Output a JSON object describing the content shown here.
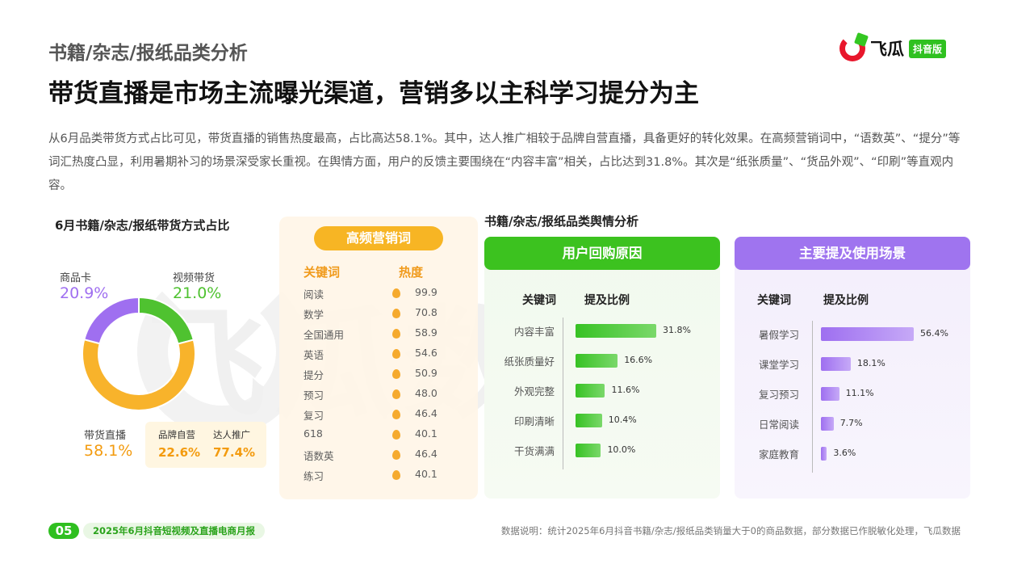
{
  "header": {
    "section_title": "书籍/杂志/报纸品类分析",
    "headline": "带货直播是市场主流曝光渠道，营销多以主科学习提分为主",
    "summary": "从6月品类带货方式占比可见，带货直播的销售热度最高，占比高达58.1%。其中，达人推广相较于品牌自营直播，具备更好的转化效果。在高频营销词中，“语数英”、“提分”等词汇热度凸显，利用暑期补习的场景深受家长重视。在舆情方面，用户的反馈主要围绕在“内容丰富”相关，占比达到31.8%。其次是“纸张质量”、“货品外观”、“印刷”等直观内容。"
  },
  "logo": {
    "text": "飞瓜",
    "badge": "抖音版"
  },
  "watermark": "飞瓜数据",
  "colors": {
    "green": "#3cc21f",
    "purple": "#9f74ef",
    "orange": "#f7b219",
    "red": "#e8172c"
  },
  "chart_data": [
    {
      "type": "pie",
      "title": "6月书籍/杂志/报纸带货方式占比",
      "slices": [
        {
          "name": "视频带货",
          "value": 21.0,
          "value_label": "21.0%",
          "color": "#4fc230"
        },
        {
          "name": "带货直播",
          "value": 58.1,
          "value_label": "58.1%",
          "color": "#f8b32b"
        },
        {
          "name": "商品卡",
          "value": 20.9,
          "value_label": "20.9%",
          "color": "#9f6ff0"
        }
      ],
      "sub_split": [
        {
          "name": "品牌自营",
          "value_label": "22.6%"
        },
        {
          "name": "达人推广",
          "value_label": "77.4%"
        }
      ]
    },
    {
      "type": "table",
      "title": "高频营销词",
      "columns": [
        "关键词",
        "热度"
      ],
      "rows": [
        {
          "word": "阅读",
          "heat": "99.9"
        },
        {
          "word": "数学",
          "heat": "70.8"
        },
        {
          "word": "全国通用",
          "heat": "58.9"
        },
        {
          "word": "英语",
          "heat": "54.6"
        },
        {
          "word": "提分",
          "heat": "50.9"
        },
        {
          "word": "预习",
          "heat": "48.0"
        },
        {
          "word": "复习",
          "heat": "46.4"
        },
        {
          "word": "618",
          "heat": "40.1"
        },
        {
          "word": "语数英",
          "heat": "46.4"
        },
        {
          "word": "练习",
          "heat": "40.1"
        }
      ]
    },
    {
      "type": "bar",
      "title": "用户回购原因",
      "columns": [
        "关键词",
        "提及比例"
      ],
      "categories": [
        "内容丰富",
        "纸张质量好",
        "外观完整",
        "印刷清晰",
        "干货满满"
      ],
      "values": [
        31.8,
        16.6,
        11.6,
        10.4,
        10.0
      ],
      "value_labels": [
        "31.8%",
        "16.6%",
        "11.6%",
        "10.4%",
        "10.0%"
      ]
    },
    {
      "type": "bar",
      "title": "主要提及使用场景",
      "columns": [
        "关键词",
        "提及比例"
      ],
      "categories": [
        "暑假学习",
        "课堂学习",
        "复习预习",
        "日常阅读",
        "家庭教育"
      ],
      "values": [
        56.4,
        18.1,
        11.1,
        7.7,
        3.6
      ],
      "value_labels": [
        "56.4%",
        "18.1%",
        "11.1%",
        "7.7%",
        "3.6%"
      ]
    }
  ],
  "sentiment_title": "书籍/杂志/报纸品类舆情分析",
  "footer": {
    "page_number": "05",
    "report_name": "2025年6月抖音短视频及直播电商月报",
    "note": "数据说明：统计2025年6月抖音书籍/杂志/报纸品类销量大于0的商品数据，部分数据已作脱敏化处理，飞瓜数据"
  }
}
